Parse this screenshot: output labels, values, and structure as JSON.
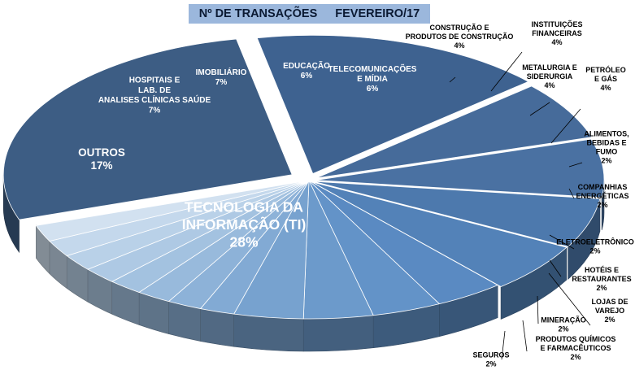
{
  "title": {
    "part1": "Nº DE TRANSAÇÕES",
    "part2": "FEVEREIRO/17"
  },
  "chart_data": {
    "type": "pie",
    "title": "Nº DE TRANSAÇÕES FEVEREIRO/17",
    "unit": "%",
    "slices": [
      {
        "label": "TECNOLOGIA DA INFORMAÇÃO (TI)",
        "value": 28,
        "color": "#3d5d84"
      },
      {
        "label": "OUTROS",
        "value": 17,
        "color": "#3e6290"
      },
      {
        "label": "HOSPITAIS E LAB. DE ANALISES CLÍNICAS SAÚDE",
        "value": 7,
        "color": "#466b9a"
      },
      {
        "label": "IMOBILIÁRIO",
        "value": 7,
        "color": "#4a71a2"
      },
      {
        "label": "EDUCAÇÃO",
        "value": 6,
        "color": "#4d79ad"
      },
      {
        "label": "TELECOMUNICAÇÕES E MÍDIA",
        "value": 6,
        "color": "#5382b8"
      },
      {
        "label": "CONSTRUÇÃO E PRODUTOS DE CONSTRUÇÃO",
        "value": 4,
        "color": "#5a8ac2"
      },
      {
        "label": "INSTITUIÇÕES FINANCEIRAS",
        "value": 4,
        "color": "#6393c8"
      },
      {
        "label": "METALURGIA E SIDERURGIA",
        "value": 4,
        "color": "#6c9acb"
      },
      {
        "label": "PETRÓLEO E GÁS",
        "value": 4,
        "color": "#77a2cf"
      },
      {
        "label": "ALIMENTOS, BEBIDAS E FUMO",
        "value": 2,
        "color": "#82aad4"
      },
      {
        "label": "COMPANHIAS ENERGÉTICAS",
        "value": 2,
        "color": "#8db2d8"
      },
      {
        "label": "ELETROELETRÔNICO",
        "value": 2,
        "color": "#98badc"
      },
      {
        "label": "HOTÉIS E RESTAURANTES",
        "value": 2,
        "color": "#a3c2e0"
      },
      {
        "label": "LOJAS DE VAREJO",
        "value": 2,
        "color": "#aec9e4"
      },
      {
        "label": "MINERAÇÃO",
        "value": 2,
        "color": "#b9d1e8"
      },
      {
        "label": "PRODUTOS QUÍMICOS E FARMACÊUTICOS",
        "value": 2,
        "color": "#c4d8ec"
      },
      {
        "label": "SEGUROS",
        "value": 2,
        "color": "#d2e1f0"
      }
    ]
  }
}
